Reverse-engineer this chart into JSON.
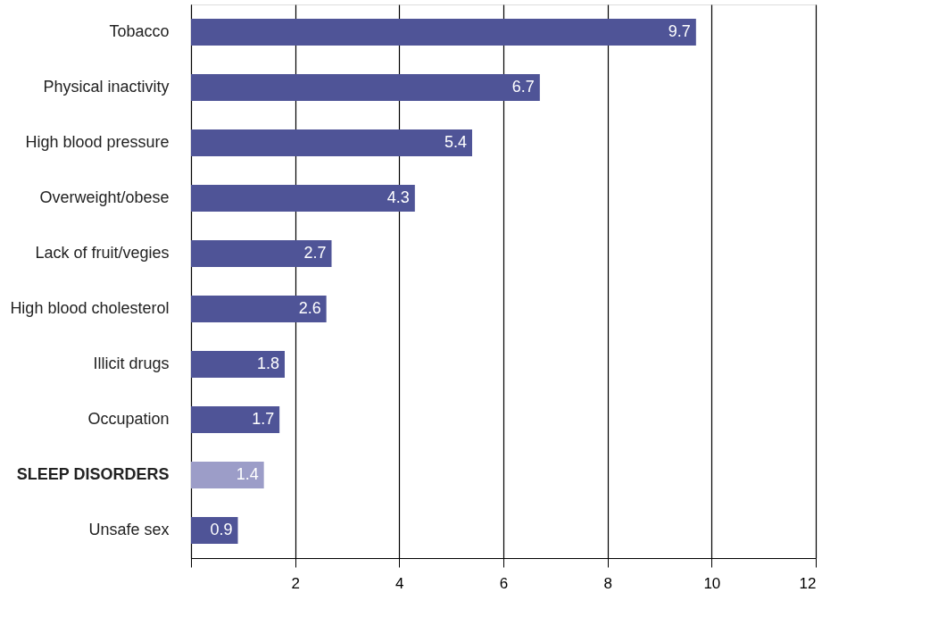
{
  "chart_data": {
    "type": "bar",
    "orientation": "horizontal",
    "categories": [
      "Tobacco",
      "Physical inactivity",
      "High blood pressure",
      "Overweight/obese",
      "Lack of fruit/vegies",
      "High blood cholesterol",
      "Illicit drugs",
      "Occupation",
      "SLEEP DISORDERS",
      "Unsafe sex"
    ],
    "values": [
      9.7,
      6.7,
      5.4,
      4.3,
      2.7,
      2.6,
      1.8,
      1.7,
      1.4,
      0.9
    ],
    "colors": [
      "#4f5497",
      "#4f5497",
      "#4f5497",
      "#4f5497",
      "#4f5497",
      "#4f5497",
      "#4f5497",
      "#4f5497",
      "#9c9dc8",
      "#4f5497"
    ],
    "xlim": [
      0,
      12
    ],
    "xticks": [
      {
        "value": 0,
        "label": null
      },
      2,
      4,
      6,
      8,
      10,
      12
    ],
    "grid": "x",
    "data_labels": true
  }
}
